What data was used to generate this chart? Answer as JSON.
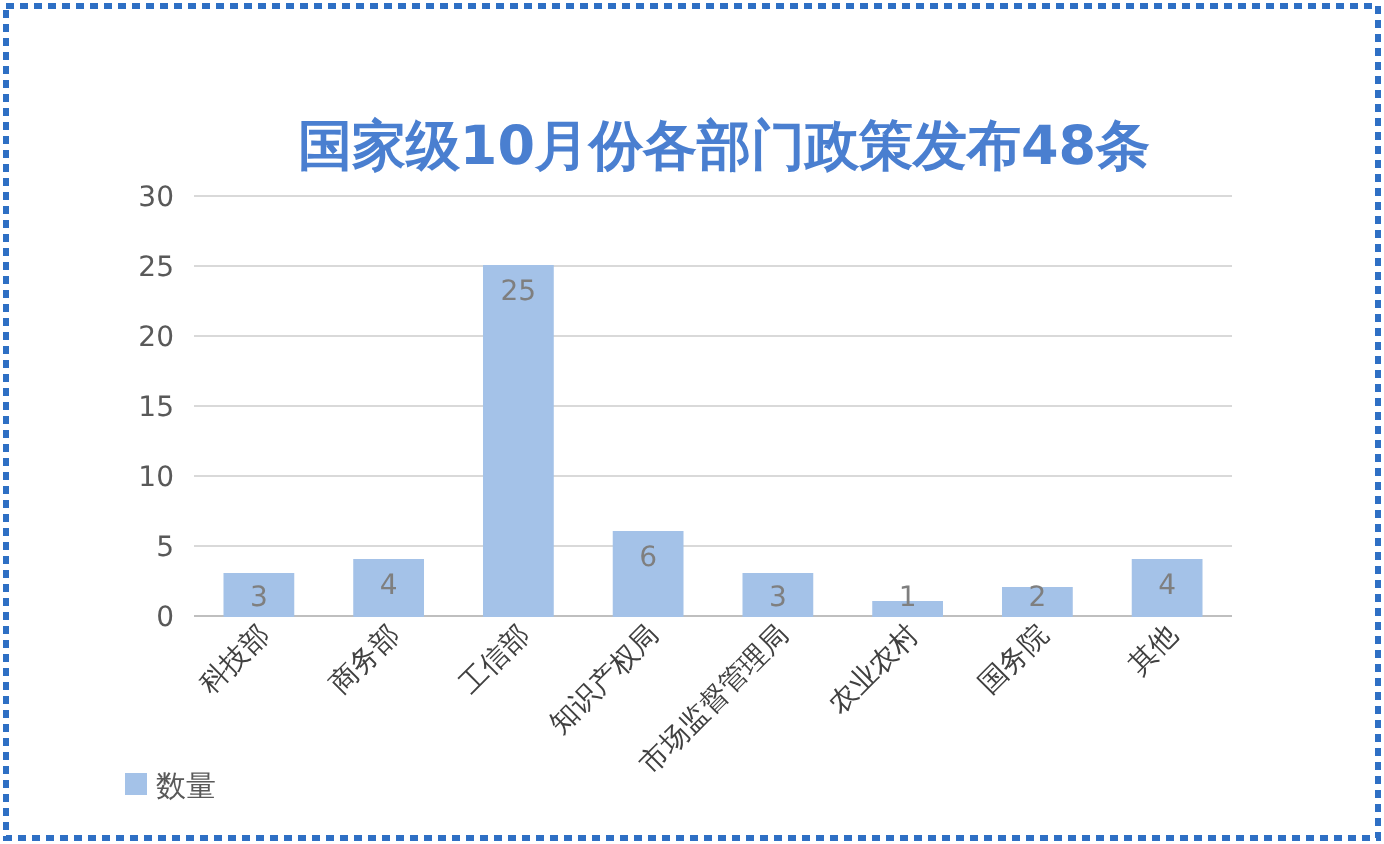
{
  "chart_data": {
    "type": "bar",
    "title": "国家级10月份各部门政策发布48条",
    "categories": [
      "科技部",
      "商务部",
      "工信部",
      "知识产权局",
      "市场监督管理局",
      "农业农村",
      "国务院",
      "其他"
    ],
    "series": [
      {
        "name": "数量",
        "color": "#a4c2e8",
        "values": [
          3,
          4,
          25,
          6,
          3,
          1,
          2,
          4
        ]
      }
    ],
    "ylim": [
      0,
      30
    ],
    "yticks": [
      0,
      5,
      10,
      15,
      20,
      25,
      30
    ],
    "grid": "y",
    "data_labels": true,
    "legend": "bottom left"
  }
}
